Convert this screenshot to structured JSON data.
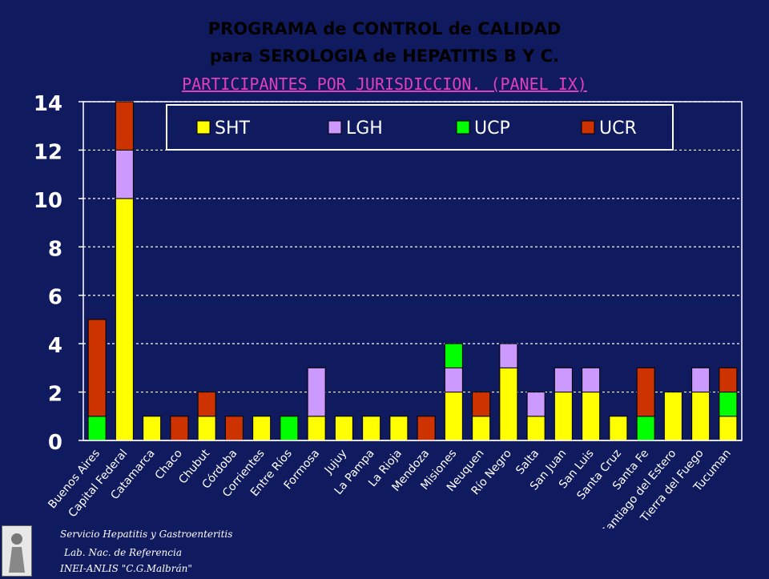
{
  "header": {
    "title_line1": "PROGRAMA de CONTROL de CALIDAD",
    "title_line2": "para SEROLOGIA de HEPATITIS B Y C.",
    "title_line3": "PARTICIPANTES POR JURISDICCION. (PANEL IX)"
  },
  "footer": {
    "line1": "Servicio Hepatitis y Gastroenteritis",
    "line2": "Lab. Nac. de Referencia",
    "line3": "INEI-ANLIS \"C.G.Malbrán\""
  },
  "colors": {
    "background": "#101a5e",
    "plot_area": "#101a5e",
    "SHT": "#ffff00",
    "LGH": "#cc99ff",
    "UCP": "#00ff00",
    "UCR": "#cc3300"
  },
  "chart_data": {
    "type": "bar",
    "stacked": true,
    "categories": [
      "Buenos Aires",
      "Capital Federal",
      "Catamarca",
      "Chaco",
      "Chubut",
      "Córdoba",
      "Corrientes",
      "Entre Ríos",
      "Formosa",
      "Jujuy",
      "La Pampa",
      "La Rioja",
      "Mendoza",
      "Misiones",
      "Neuquen",
      "Río Negro",
      "Salta",
      "San Juan",
      "San Luis",
      "Santa Cruz",
      "Santa Fe",
      "Santiago del Estero",
      "Tierra del Fuego",
      "Tucuman"
    ],
    "series": [
      {
        "name": "SHT",
        "values": [
          0,
          10,
          1,
          0,
          1,
          0,
          1,
          0,
          1,
          1,
          1,
          1,
          0,
          2,
          1,
          3,
          1,
          2,
          2,
          1,
          0,
          2,
          2,
          1
        ]
      },
      {
        "name": "LGH",
        "values": [
          0,
          2,
          0,
          0,
          0,
          0,
          0,
          0,
          2,
          0,
          0,
          0,
          0,
          1,
          0,
          1,
          1,
          1,
          1,
          0,
          0,
          0,
          1,
          0
        ]
      },
      {
        "name": "UCP",
        "values": [
          1,
          0,
          0,
          0,
          0,
          0,
          0,
          1,
          0,
          0,
          0,
          0,
          0,
          1,
          0,
          0,
          0,
          0,
          0,
          0,
          1,
          0,
          0,
          1
        ]
      },
      {
        "name": "UCR",
        "values": [
          4,
          2,
          0,
          1,
          1,
          1,
          0,
          0,
          0,
          0,
          0,
          0,
          1,
          0,
          1,
          0,
          0,
          0,
          0,
          0,
          2,
          0,
          0,
          1
        ]
      }
    ],
    "ylim": [
      0,
      14
    ],
    "yticks": [
      0,
      2,
      4,
      6,
      8,
      10,
      12,
      14
    ],
    "grid": true,
    "legend": "top"
  }
}
